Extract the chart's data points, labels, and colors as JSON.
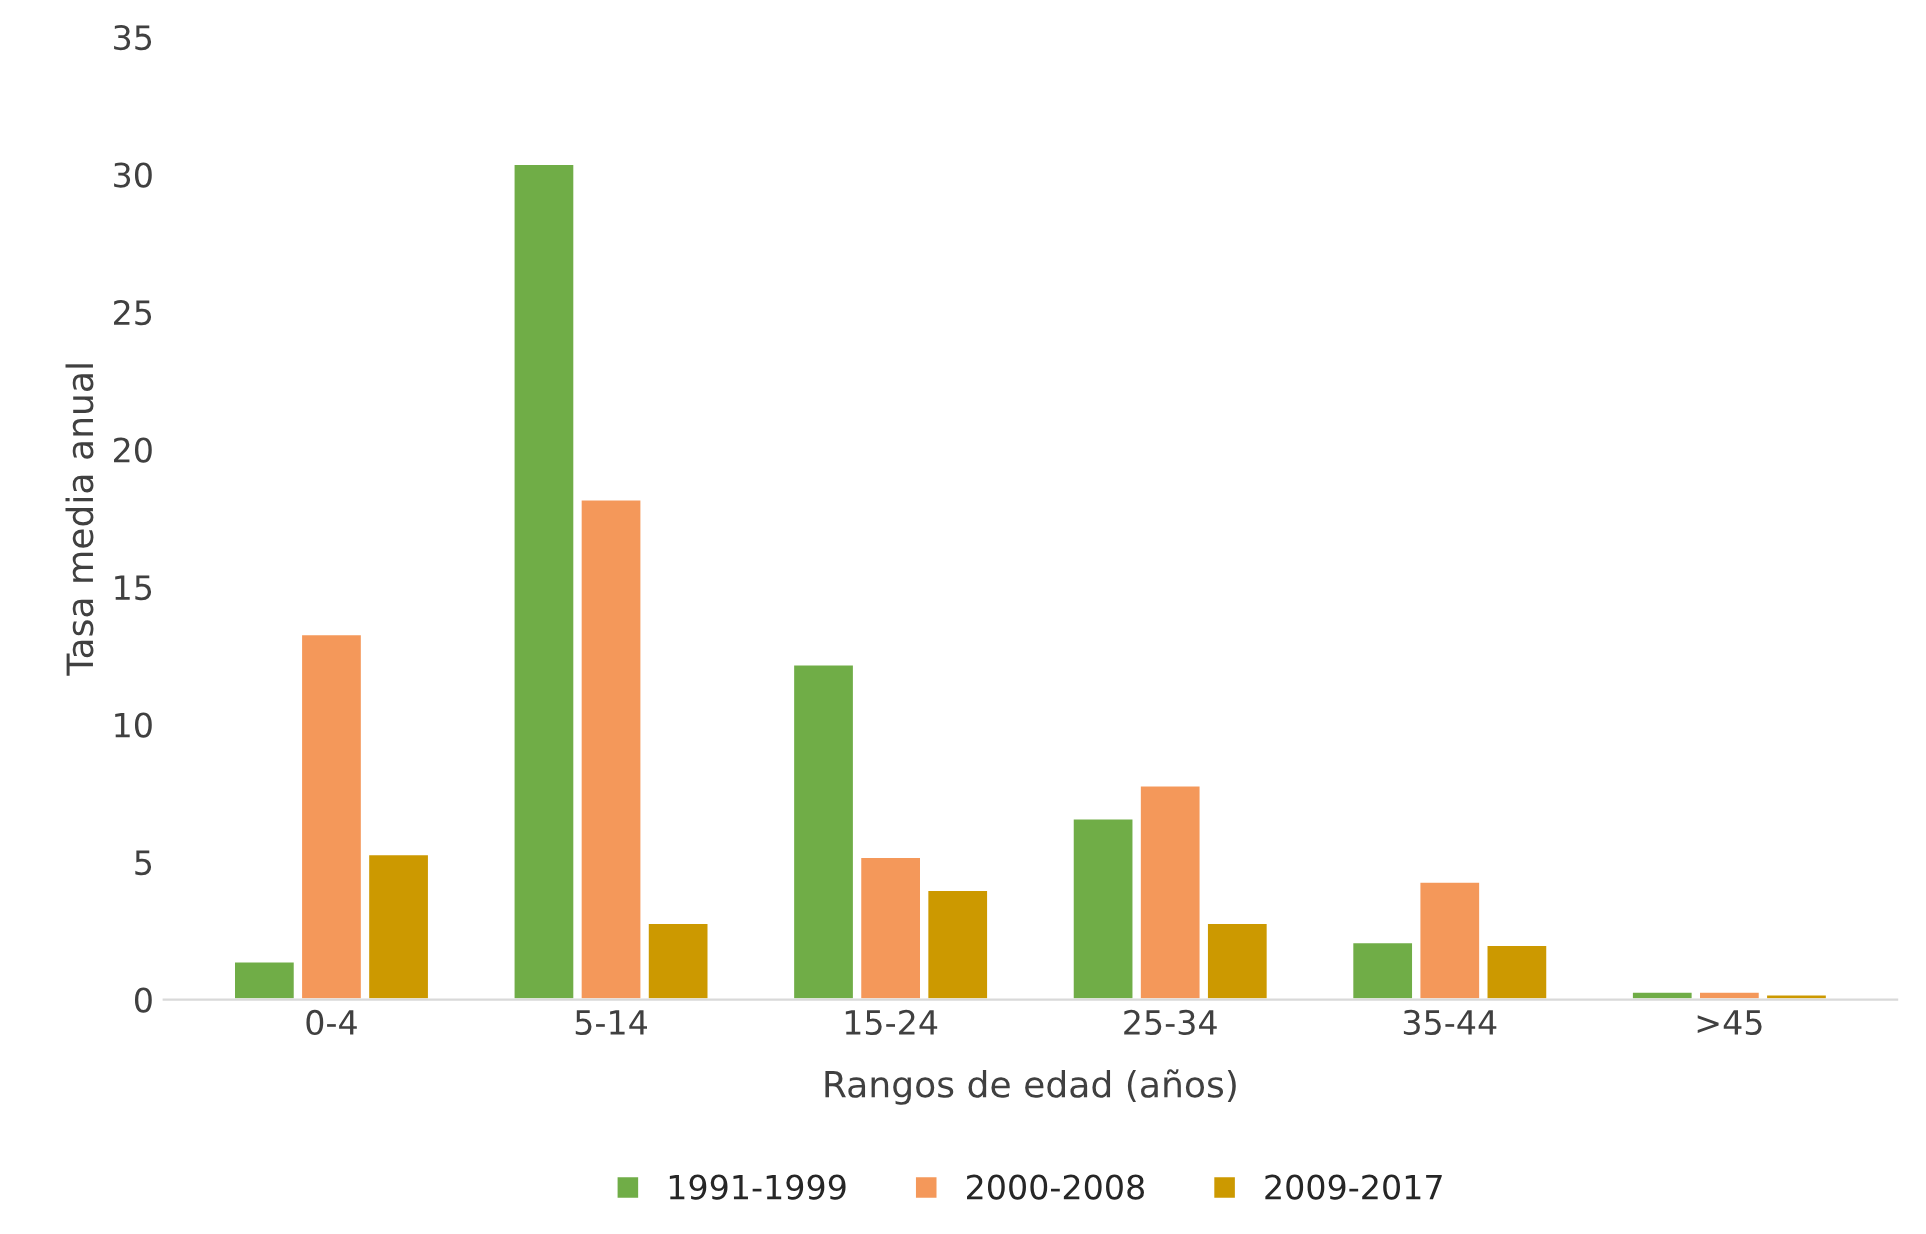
{
  "chart_data": {
    "type": "bar",
    "xlabel": "Rangos de edad (años)",
    "ylabel": "Tasa media anual",
    "categories": [
      "0-4",
      "5-14",
      "15-24",
      "25-34",
      "35-44",
      ">45"
    ],
    "series": [
      {
        "name": "1991-1999",
        "color": "#70ad47",
        "values": [
          1.4,
          30.4,
          12.2,
          6.6,
          2.1,
          0.3
        ]
      },
      {
        "name": "2000-2008",
        "color": "#f4985a",
        "values": [
          13.3,
          18.2,
          5.2,
          7.8,
          4.3,
          0.3
        ]
      },
      {
        "name": "2009-2017",
        "color": "#cc9900",
        "values": [
          5.3,
          2.8,
          4.0,
          2.8,
          2.0,
          0.2
        ]
      }
    ],
    "ylim": [
      0,
      35
    ],
    "yticks": [
      0,
      5,
      10,
      15,
      20,
      25,
      30,
      35
    ],
    "grid": false,
    "legend": "bottom"
  }
}
